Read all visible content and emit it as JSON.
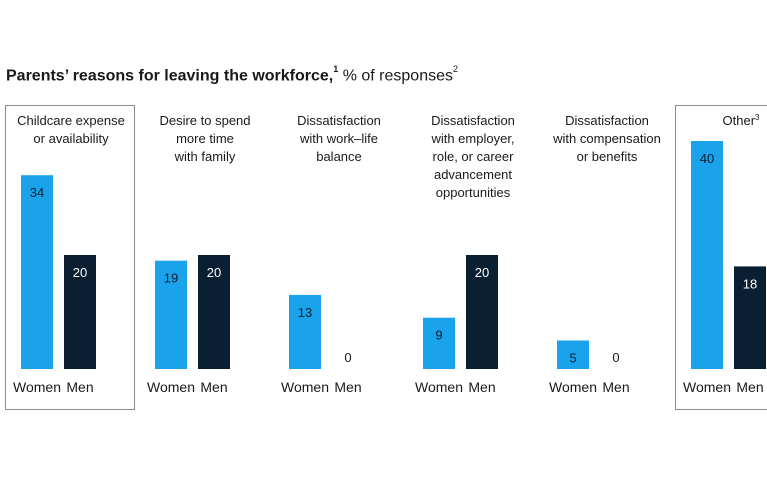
{
  "chart_data": {
    "type": "bar",
    "title": "Parents’ reasons for leaving the workforce,",
    "title_sup": "1",
    "subtitle": "% of responses",
    "subtitle_sup": "2",
    "series_labels": [
      "Women",
      "Men"
    ],
    "colors": {
      "women": "#1aa3ea",
      "men": "#0b1f33"
    },
    "ylim": [
      0,
      40
    ],
    "categories": [
      {
        "label_lines": [
          "Childcare expense",
          "or availability"
        ],
        "sup": "",
        "highlighted": true,
        "values": [
          34,
          20
        ]
      },
      {
        "label_lines": [
          "Desire to spend",
          "more time",
          "with family"
        ],
        "sup": "",
        "highlighted": false,
        "values": [
          19,
          20
        ]
      },
      {
        "label_lines": [
          "Dissatisfaction",
          "with work–life",
          "balance"
        ],
        "sup": "",
        "highlighted": false,
        "values": [
          13,
          0
        ]
      },
      {
        "label_lines": [
          "Dissatisfaction",
          "with employer,",
          "role, or career",
          "advancement",
          "opportunities"
        ],
        "sup": "",
        "highlighted": false,
        "values": [
          9,
          20
        ]
      },
      {
        "label_lines": [
          "Dissatisfaction",
          "with compensation",
          "or benefits"
        ],
        "sup": "",
        "highlighted": false,
        "values": [
          5,
          0
        ]
      },
      {
        "label_lines": [
          "Other"
        ],
        "sup": "3",
        "highlighted": true,
        "values": [
          40,
          18
        ]
      }
    ]
  }
}
